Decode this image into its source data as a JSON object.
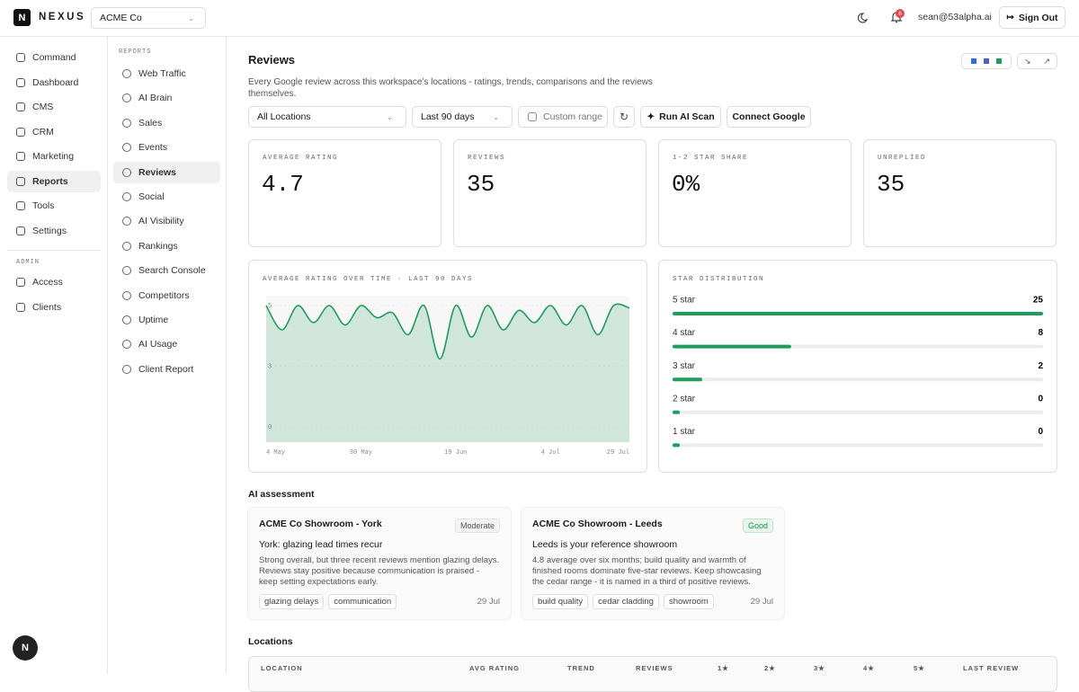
{
  "header": {
    "logo": "N",
    "brand": "NEXUS",
    "workspace": "ACME Co",
    "notifications": "6",
    "user": "sean@53alpha.ai",
    "sign_out": "Sign Out"
  },
  "nav": {
    "items": [
      "Command",
      "Dashboard",
      "CMS",
      "CRM",
      "Marketing",
      "Reports",
      "Tools",
      "Settings"
    ],
    "active": 5,
    "admin_heading": "ADMIN",
    "admin_items": [
      "Access",
      "Clients"
    ],
    "avatar": "N"
  },
  "reports_nav": {
    "heading": "REPORTS",
    "items": [
      "Web Traffic",
      "AI Brain",
      "Sales",
      "Events",
      "Reviews",
      "Social",
      "AI Visibility",
      "Rankings",
      "Search Console",
      "Competitors",
      "Uptime",
      "AI Usage",
      "Client Report"
    ],
    "active": 4
  },
  "page": {
    "title": "Reviews",
    "description": "Every Google review across this workspace's locations - ratings, trends, comparisons and the reviews themselves."
  },
  "filters": {
    "location": "All Locations",
    "period": "Last 90 days",
    "custom": "Custom range",
    "scan": "Run AI Scan",
    "connect": "Connect Google"
  },
  "kpis": [
    {
      "label": "AVERAGE RATING",
      "value": "4.7"
    },
    {
      "label": "REVIEWS",
      "value": "35"
    },
    {
      "label": "1-2 STAR SHARE",
      "value": "0%"
    },
    {
      "label": "UNREPLIED",
      "value": "35"
    }
  ],
  "chart_data": [
    {
      "type": "line",
      "title": "AVERAGE RATING OVER TIME · LAST 90 DAYS",
      "color": "#1f9d5c",
      "categories": [
        "4 May",
        null,
        null,
        null,
        null,
        null,
        "30 May",
        null,
        null,
        null,
        null,
        null,
        "19 Jun",
        null,
        null,
        null,
        null,
        null,
        "4 Jul",
        null,
        null,
        null,
        null,
        "29 Jul"
      ],
      "values": [
        5,
        4,
        5,
        4.3,
        5,
        4.2,
        5,
        4.5,
        4.7,
        3.8,
        5,
        2.8,
        5,
        3.7,
        5,
        4.0,
        4.8,
        4.3,
        5,
        4.2,
        5,
        3.8,
        5,
        4.9
      ],
      "ylim": [
        0,
        5
      ],
      "yticks": [
        0,
        {
          "value": 2.5,
          "label": "3"
        },
        5
      ]
    },
    {
      "type": "bar",
      "title": "STAR DISTRIBUTION",
      "color": "#1f9d5c",
      "categories": [
        "5 star",
        "4 star",
        "3 star",
        "2 star",
        "1 star"
      ],
      "values": [
        25,
        8,
        2,
        0,
        0
      ]
    }
  ],
  "ai_assessment": {
    "title": "AI assessment",
    "cards": [
      {
        "name": "ACME Co Showroom - York",
        "badge": "Moderate",
        "headline": "York: glazing lead times recur",
        "body": "Strong overall, but three recent reviews mention glazing delays. Reviews stay positive because communication is praised - keep setting expectations early.",
        "tags": [
          "glazing delays",
          "communication"
        ],
        "date": "29 Jul"
      },
      {
        "name": "ACME Co Showroom - Leeds",
        "badge": "Good",
        "headline": "Leeds is your reference showroom",
        "body": "4.8 average over six months; build quality and warmth of finished rooms dominate five-star reviews. Keep showcasing the cedar range - it is named in a third of positive reviews.",
        "tags": [
          "build quality",
          "cedar cladding",
          "showroom"
        ],
        "date": "29 Jul"
      }
    ]
  },
  "locations": {
    "title": "Locations",
    "columns": [
      "LOCATION",
      "AVG RATING",
      "TREND",
      "REVIEWS",
      "1★",
      "2★",
      "3★",
      "4★",
      "5★",
      "LAST REVIEW"
    ]
  }
}
